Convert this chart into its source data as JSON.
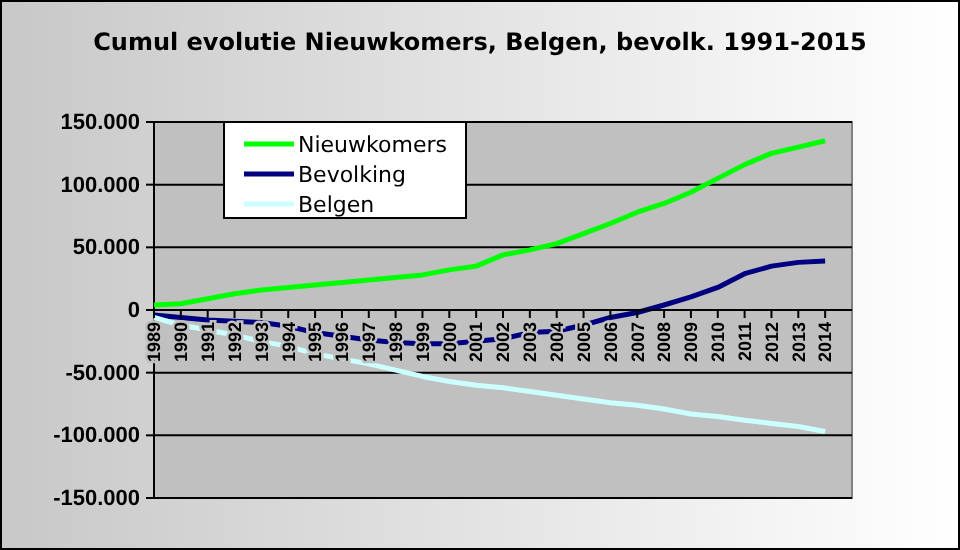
{
  "chart_data": {
    "type": "line",
    "title": "Cumul evolutie Nieuwkomers, Belgen, bevolk. 1991-2015",
    "categories": [
      "1989",
      "1990",
      "1991",
      "1992",
      "1993",
      "1994",
      "1995",
      "1996",
      "1997",
      "1998",
      "1999",
      "2000",
      "2001",
      "2002",
      "2003",
      "2004",
      "2005",
      "2006",
      "2007",
      "2008",
      "2009",
      "2010",
      "2011",
      "2012",
      "2013",
      "2014"
    ],
    "series": [
      {
        "name": "Nieuwkomers",
        "color": "#00ff00",
        "values": [
          4000,
          5000,
          9000,
          13000,
          16000,
          18000,
          20000,
          22000,
          24000,
          26000,
          28000,
          32000,
          35000,
          44000,
          48000,
          53000,
          61000,
          69000,
          78000,
          85000,
          94000,
          105000,
          116000,
          125000,
          130000,
          135000
        ]
      },
      {
        "name": "Bevolking",
        "color": "#000080",
        "values": [
          -4000,
          -6000,
          -8000,
          -9000,
          -10000,
          -13000,
          -18000,
          -21000,
          -24000,
          -26000,
          -27000,
          -27000,
          -25000,
          -23000,
          -18000,
          -17000,
          -12000,
          -6000,
          -2000,
          4000,
          10500,
          18000,
          29000,
          35000,
          38000,
          39000
        ]
      },
      {
        "name": "Belgen",
        "color": "#ccffff",
        "values": [
          -6000,
          -12000,
          -16000,
          -20000,
          -25000,
          -29000,
          -35000,
          -39000,
          -43000,
          -48000,
          -53000,
          -57000,
          -60000,
          -62000,
          -65000,
          -68000,
          -71000,
          -74000,
          -76000,
          -79000,
          -83000,
          -85000,
          -88000,
          -90500,
          -93000,
          -97000
        ]
      }
    ],
    "ylim": [
      -150000,
      150000
    ],
    "yticks": [
      {
        "value": -150000,
        "label": "-150.000"
      },
      {
        "value": -100000,
        "label": "-100.000"
      },
      {
        "value": -50000,
        "label": "-50.000"
      },
      {
        "value": 0,
        "label": "0"
      },
      {
        "value": 50000,
        "label": "50.000"
      },
      {
        "value": 100000,
        "label": "100.000"
      },
      {
        "value": 150000,
        "label": "150.000"
      }
    ],
    "grid": "y",
    "legend": "top left",
    "marker": "none",
    "line_style": "solid"
  }
}
